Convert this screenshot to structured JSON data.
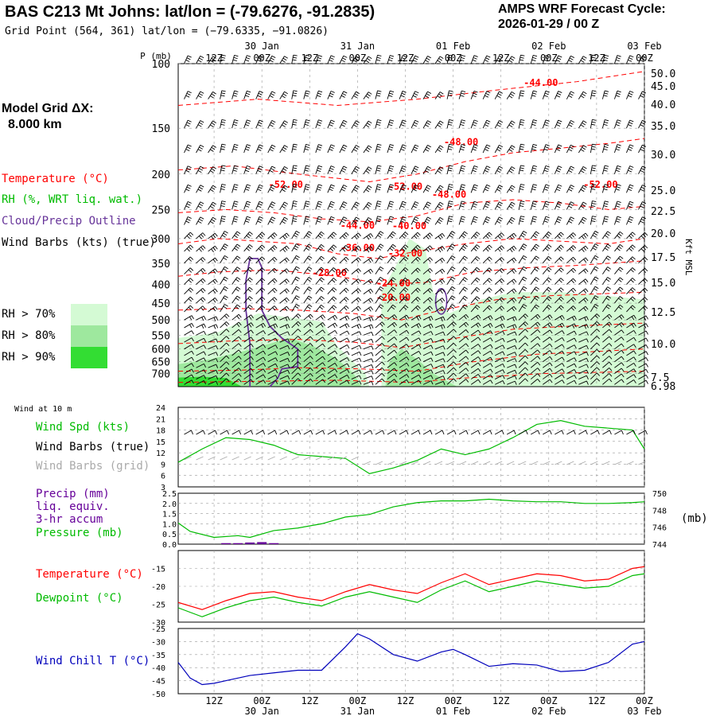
{
  "header": {
    "title": "BAS C213 Mt Johns:  lat/lon = (-79.6276, -91.2835)",
    "grid_point": "Grid Point (564, 361) lat/lon = (−79.6335, −91.0826)",
    "cycle_label": "AMPS WRF Forecast Cycle:",
    "cycle_value": "2026-01-29 / 00  Z"
  },
  "side_panel": {
    "model_grid_label": "Model Grid ΔX:",
    "model_grid_value": "8.000 km",
    "temperature_label": "Temperature (°C)",
    "rh_label": "RH (%, WRT liq. wat.)",
    "cloud_label": "Cloud/Precip Outline",
    "wind_label": "Wind Barbs (kts) (true)",
    "rh_levels": [
      {
        "label": "RH > 70%",
        "color": "#d4fad4"
      },
      {
        "label": "RH > 80%",
        "color": "#9ee89e"
      },
      {
        "label": "RH > 90%",
        "color": "#33dd33"
      }
    ]
  },
  "colors": {
    "temperature": "#ff0000",
    "dewpoint": "#00bb00",
    "wind_speed": "#00bb00",
    "pressure": "#00bb00",
    "precip": "#660099",
    "cloud_outline": "#663399",
    "wind_chill": "#0000bb",
    "barbs_true": "#000000",
    "barbs_grid": "#aaaaaa",
    "grid": "#999999"
  },
  "time_axis": {
    "hours_range": [
      0,
      117
    ],
    "top_hour_ticks": [
      "12Z",
      "00Z",
      "12Z",
      "00Z",
      "12Z",
      "00Z",
      "12Z",
      "00Z",
      "12Z",
      "00Z"
    ],
    "top_date_ticks": [
      "30 Jan",
      "31 Jan",
      "01 Feb",
      "02 Feb",
      "03 Feb"
    ],
    "bottom_hour_ticks": [
      "12Z",
      "00Z",
      "12Z",
      "00Z",
      "12Z",
      "00Z",
      "12Z",
      "00Z",
      "12Z",
      "00Z"
    ],
    "bottom_date_ticks": [
      "30 Jan",
      "31 Jan",
      "01 Feb",
      "02 Feb",
      "03 Feb"
    ]
  },
  "chart_data": [
    {
      "type": "heatmap",
      "panel": "vertical cross-section",
      "ylabel": "P (mb)",
      "y_right_label": "Kft MSL",
      "ylim": [
        100,
        760
      ],
      "y_scale": "log-pressure",
      "pressure_ticks": [
        "100",
        "150",
        "200",
        "250",
        "300",
        "350",
        "400",
        "450",
        "500",
        "550",
        "600",
        "650",
        "700"
      ],
      "height_ticks": [
        "50.0",
        "45.0",
        "40.0",
        "35.0",
        "30.0",
        "25.0",
        "22.5",
        "20.0",
        "17.5",
        "15.0",
        "12.5",
        "10.0",
        "7.5",
        "6.98"
      ],
      "temperature_labels": [
        "-44.00",
        "-48.00",
        "-52.00",
        "-52.00",
        "-48.00",
        "-52.00",
        "-44.00",
        "-40.00",
        "-36.00",
        "-32.00",
        "-28.00",
        "-24.00",
        "-20.00"
      ]
    },
    {
      "type": "line",
      "panel": "Wind at 10 m",
      "panel_title": "Wind at 10 m",
      "labels": [
        "Wind Spd (kts)",
        "Wind Barbs (true)",
        "Wind Barbs (grid)"
      ],
      "ylim": [
        3,
        24
      ],
      "yticks": [
        "24",
        "21",
        "18",
        "15",
        "12",
        "9",
        "6",
        "3"
      ],
      "series": [
        {
          "name": "Wind Spd (kts)",
          "x": [
            0,
            6,
            12,
            18,
            24,
            30,
            36,
            42,
            48,
            54,
            60,
            66,
            72,
            78,
            84,
            90,
            96,
            102,
            108,
            114,
            117
          ],
          "values": [
            9.5,
            13,
            16,
            15.5,
            14,
            11.5,
            11,
            10.5,
            6.5,
            8,
            10,
            13,
            11.5,
            13,
            16,
            19.5,
            20.5,
            19,
            18.5,
            18,
            13
          ]
        }
      ]
    },
    {
      "type": "line",
      "panel": "precip and pressure",
      "labels": [
        "Precip (mm)",
        "liq. equiv.",
        "3-hr accum",
        "Pressure (mb)"
      ],
      "y_left_ticks": [
        "2.5",
        "2.0",
        "1.5",
        "1.0",
        "0.5",
        "0.0"
      ],
      "y_right_ticks": [
        "750",
        "748",
        "746",
        "744"
      ],
      "y_right_unit": "(mb)",
      "ylim_precip": [
        0,
        2.5
      ],
      "ylim_pressure": [
        744,
        750
      ],
      "series": [
        {
          "name": "Pressure (mb)",
          "x": [
            0,
            3,
            9,
            15,
            18,
            24,
            30,
            36,
            42,
            48,
            54,
            60,
            66,
            72,
            78,
            84,
            90,
            96,
            102,
            108,
            114,
            117
          ],
          "values": [
            746.5,
            745.5,
            744.8,
            745,
            744.8,
            745.6,
            745.9,
            746.4,
            747.2,
            747.5,
            748.4,
            748.9,
            749.1,
            749.1,
            749.3,
            749.1,
            749.0,
            749.0,
            748.8,
            748.8,
            748.9,
            749.0
          ]
        },
        {
          "name": "Precip (mm)",
          "x": [
            12,
            15,
            18,
            21,
            24
          ],
          "values": [
            0.05,
            0.05,
            0.08,
            0.1,
            0.05
          ]
        }
      ]
    },
    {
      "type": "line",
      "panel": "temperature and dewpoint",
      "labels": [
        "Temperature (°C)",
        "Dewpoint (°C)"
      ],
      "ylim": [
        -30,
        -10
      ],
      "yticks": [
        "-15",
        "-20",
        "-25",
        "-30"
      ],
      "series": [
        {
          "name": "Temperature (°C)",
          "x": [
            0,
            6,
            12,
            18,
            24,
            30,
            36,
            42,
            48,
            54,
            60,
            66,
            72,
            78,
            84,
            90,
            96,
            102,
            108,
            114,
            117
          ],
          "values": [
            -24.5,
            -26.5,
            -24,
            -22,
            -21.5,
            -23,
            -24,
            -21.5,
            -19.5,
            -21,
            -22,
            -19,
            -16.5,
            -19.5,
            -18,
            -16.5,
            -17,
            -18.5,
            -18,
            -15,
            -14.5
          ]
        },
        {
          "name": "Dewpoint (°C)",
          "x": [
            0,
            6,
            12,
            18,
            24,
            30,
            36,
            42,
            48,
            54,
            60,
            66,
            72,
            78,
            84,
            90,
            96,
            102,
            108,
            114,
            117
          ],
          "values": [
            -26,
            -28.5,
            -26,
            -24,
            -23,
            -24.5,
            -25.5,
            -23,
            -21.5,
            -23,
            -24.5,
            -21,
            -18.5,
            -21.5,
            -20,
            -18.5,
            -19.5,
            -20.5,
            -20,
            -17,
            -16.5
          ]
        }
      ]
    },
    {
      "type": "line",
      "panel": "wind chill",
      "labels": [
        "Wind Chill T (°C)"
      ],
      "ylim": [
        -50,
        -25
      ],
      "yticks": [
        "-25",
        "-30",
        "-35",
        "-40",
        "-45",
        "-50"
      ],
      "series": [
        {
          "name": "Wind Chill T (°C)",
          "x": [
            0,
            3,
            6,
            9,
            12,
            18,
            24,
            30,
            36,
            42,
            45,
            48,
            54,
            60,
            66,
            69,
            72,
            78,
            84,
            90,
            96,
            102,
            108,
            114,
            117
          ],
          "values": [
            -38,
            -44,
            -46.5,
            -46,
            -45,
            -43,
            -42,
            -41,
            -41,
            -32,
            -27,
            -29,
            -35,
            -37.5,
            -34,
            -33,
            -35,
            -39.5,
            -38.5,
            -39,
            -41.5,
            -41,
            -38,
            -31,
            -30
          ]
        }
      ]
    }
  ]
}
